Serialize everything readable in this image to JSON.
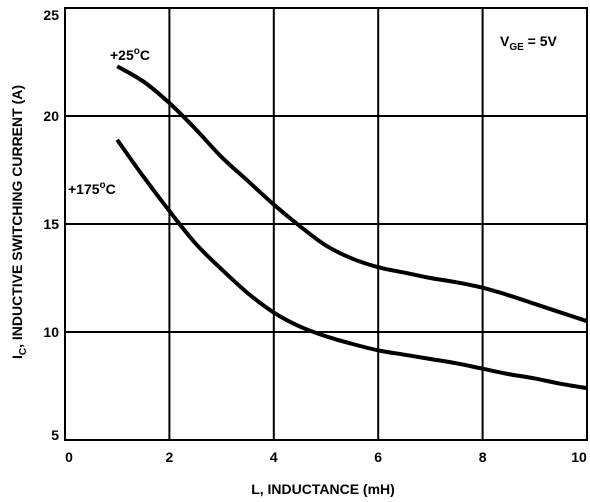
{
  "chart_data": {
    "type": "line",
    "xlabel": "L, INDUCTANCE (mH)",
    "ylabel": {
      "main": "I",
      "sub": "C",
      "rest": ", INDUCTIVE SWITCHING CURRENT (A)"
    },
    "xlim": [
      0,
      10
    ],
    "ylim": [
      5,
      25
    ],
    "x_ticks": [
      0,
      2,
      4,
      6,
      8,
      10
    ],
    "y_ticks": [
      5,
      10,
      15,
      20,
      25
    ],
    "grid": true,
    "legend": "none",
    "line_color": "#000000",
    "annotation": {
      "main": "V",
      "sub": "GE",
      "rest": " = 5V"
    },
    "series": [
      {
        "label": {
          "prefix": "+25",
          "sup": "o",
          "suffix": "C"
        },
        "x": [
          1,
          1.5,
          2,
          2.5,
          3,
          3.5,
          4,
          4.5,
          5,
          5.5,
          6,
          6.5,
          7,
          7.5,
          8,
          8.5,
          9,
          9.5,
          10
        ],
        "y": [
          22.3,
          21.6,
          20.6,
          19.4,
          18.1,
          17.0,
          15.9,
          14.9,
          14.0,
          13.4,
          13.0,
          12.75,
          12.5,
          12.3,
          12.05,
          11.7,
          11.3,
          10.9,
          10.5
        ]
      },
      {
        "label": {
          "prefix": "+175",
          "sup": "o",
          "suffix": "C"
        },
        "x": [
          1,
          1.5,
          2,
          2.5,
          3,
          3.5,
          4,
          4.5,
          5,
          5.5,
          6,
          6.5,
          7,
          7.5,
          8,
          8.5,
          9,
          9.5,
          10
        ],
        "y": [
          18.9,
          17.2,
          15.6,
          14.1,
          12.9,
          11.8,
          10.9,
          10.25,
          9.8,
          9.45,
          9.15,
          8.95,
          8.75,
          8.55,
          8.3,
          8.05,
          7.85,
          7.6,
          7.4
        ]
      }
    ]
  }
}
